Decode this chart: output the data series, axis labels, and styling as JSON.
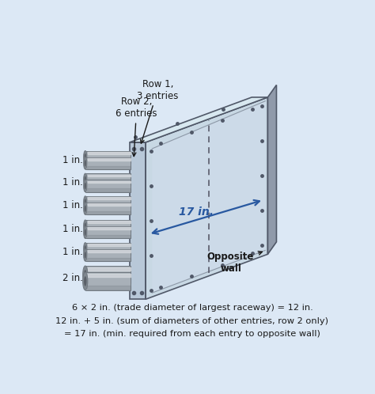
{
  "bg_color": "#dce8f5",
  "border_color": "#8899aa",
  "caption_lines": [
    "6 × 2 in. (trade diameter of largest raceway) = 12 in.",
    "12 in. + 5 in. (sum of diameters of other entries, row 2 only)",
    "= 17 in. (min. required from each entry to opposite wall)"
  ],
  "caption_fontsize": 8.2,
  "label_row1": "Row 1,\n3 entries",
  "label_row2": "Row 2,\n6 entries",
  "label_17in": "17 in.",
  "label_opp": "Opposite\nwall",
  "conduit_labels": [
    "1 in.",
    "1 in.",
    "1 in.",
    "1 in.",
    "1 in.",
    "2 in."
  ],
  "box_front_color": "#b8c8d8",
  "box_main_color": "#c8d8e4",
  "box_top_color": "#d8e8f0",
  "box_edge_color": "#505868",
  "box_right_strip_color": "#909aaa",
  "inner_face_color": "#ccdae8",
  "conduit_body_color": "#a8b0b8",
  "conduit_dark_color": "#707880",
  "conduit_highlight_color": "#d8dce0",
  "arrow_color": "#2858a0",
  "dashed_color": "#505060",
  "text_color": "#1a1a1a",
  "bolt_color": "#505868"
}
